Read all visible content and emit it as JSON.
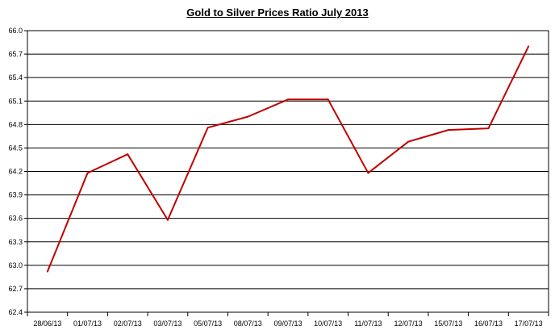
{
  "chart_data": {
    "type": "line",
    "title": "Gold to Silver Prices Ratio July  2013",
    "xlabel": "",
    "ylabel": "",
    "categories": [
      "28/06/13",
      "01/07/13",
      "02/07/13",
      "03/07/13",
      "05/07/13",
      "08/07/13",
      "09/07/13",
      "10/07/13",
      "11/07/13",
      "12/07/13",
      "15/07/13",
      "16/07/13",
      "17/07/13"
    ],
    "series": [
      {
        "values": [
          62.92,
          64.18,
          64.42,
          63.58,
          64.76,
          64.9,
          65.12,
          65.12,
          64.18,
          64.58,
          64.73,
          64.75,
          65.8
        ]
      }
    ],
    "ylim": [
      62.4,
      66.0
    ],
    "yticks": [
      "62.4",
      "62.7",
      "63.0",
      "63.3",
      "63.6",
      "63.9",
      "64.2",
      "64.5",
      "64.8",
      "65.1",
      "65.4",
      "65.7",
      "66.0"
    ],
    "grid": "horizontal",
    "legend": "none",
    "line_color": "#C00000"
  }
}
